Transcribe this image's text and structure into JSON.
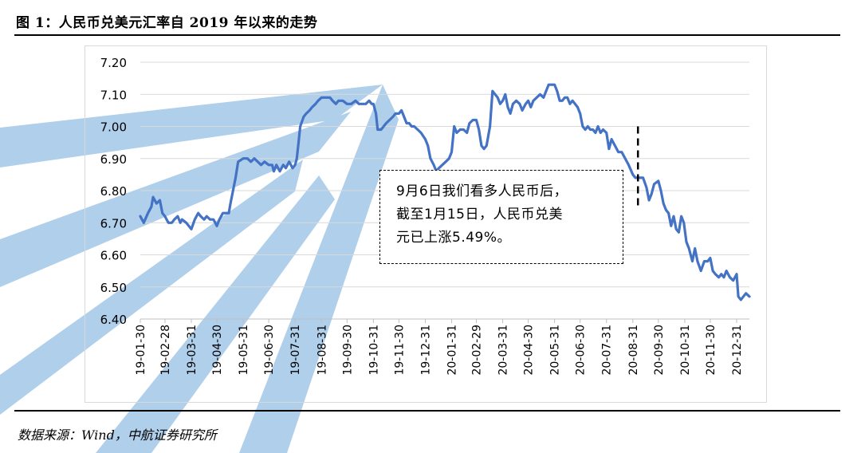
{
  "figure": {
    "title": "图 1：人民币兑美元汇率自 2019 年以来的走势",
    "source": "数据来源：Wind，中航证券研究所"
  },
  "annotation": {
    "lines": [
      "9月6日我们看多人民币后，",
      "截至1月15日，人民币兑美",
      "元已上涨5.49%。"
    ],
    "marker_date": "2020-09-06"
  },
  "colors": {
    "line": "#4472c4",
    "grid": "#d9d9d9",
    "watermark": "#6fa8dc"
  },
  "chart_data": {
    "type": "line",
    "title": "",
    "xlabel": "",
    "ylabel": "",
    "ylim": [
      6.4,
      7.2
    ],
    "yticks": [
      "7.20",
      "7.10",
      "7.00",
      "6.90",
      "6.80",
      "6.70",
      "6.60",
      "6.50",
      "6.40"
    ],
    "xticks": [
      "19-01-30",
      "19-02-28",
      "19-03-31",
      "19-04-30",
      "19-05-31",
      "19-06-30",
      "19-07-31",
      "19-08-31",
      "19-09-30",
      "19-10-31",
      "19-11-30",
      "19-12-31",
      "20-01-31",
      "20-02-29",
      "20-03-31",
      "20-04-30",
      "20-05-31",
      "20-06-30",
      "20-07-31",
      "20-08-31",
      "20-09-30",
      "20-10-31",
      "20-11-30",
      "20-12-31"
    ],
    "grid": "horizontal",
    "legend": "none",
    "series": [
      {
        "name": "",
        "points": [
          [
            "2019-01-30",
            6.72
          ],
          [
            "2019-02-03",
            6.7
          ],
          [
            "2019-02-08",
            6.73
          ],
          [
            "2019-02-12",
            6.75
          ],
          [
            "2019-02-14",
            6.78
          ],
          [
            "2019-02-18",
            6.76
          ],
          [
            "2019-02-22",
            6.77
          ],
          [
            "2019-02-25",
            6.73
          ],
          [
            "2019-02-28",
            6.72
          ],
          [
            "2019-03-04",
            6.7
          ],
          [
            "2019-03-08",
            6.7
          ],
          [
            "2019-03-11",
            6.71
          ],
          [
            "2019-03-15",
            6.72
          ],
          [
            "2019-03-18",
            6.7
          ],
          [
            "2019-03-20",
            6.71
          ],
          [
            "2019-03-25",
            6.7
          ],
          [
            "2019-03-28",
            6.69
          ],
          [
            "2019-03-31",
            6.68
          ],
          [
            "2019-04-04",
            6.71
          ],
          [
            "2019-04-08",
            6.73
          ],
          [
            "2019-04-11",
            6.72
          ],
          [
            "2019-04-15",
            6.71
          ],
          [
            "2019-04-18",
            6.72
          ],
          [
            "2019-04-22",
            6.71
          ],
          [
            "2019-04-26",
            6.71
          ],
          [
            "2019-04-30",
            6.69
          ],
          [
            "2019-05-03",
            6.71
          ],
          [
            "2019-05-07",
            6.73
          ],
          [
            "2019-05-10",
            6.73
          ],
          [
            "2019-05-14",
            6.73
          ],
          [
            "2019-05-16",
            6.76
          ],
          [
            "2019-05-19",
            6.8
          ],
          [
            "2019-05-22",
            6.84
          ],
          [
            "2019-05-25",
            6.89
          ],
          [
            "2019-05-31",
            6.9
          ],
          [
            "2019-06-05",
            6.9
          ],
          [
            "2019-06-09",
            6.89
          ],
          [
            "2019-06-13",
            6.9
          ],
          [
            "2019-06-17",
            6.89
          ],
          [
            "2019-06-21",
            6.88
          ],
          [
            "2019-06-25",
            6.89
          ],
          [
            "2019-06-30",
            6.88
          ],
          [
            "2019-07-04",
            6.88
          ],
          [
            "2019-07-06",
            6.86
          ],
          [
            "2019-07-09",
            6.88
          ],
          [
            "2019-07-13",
            6.86
          ],
          [
            "2019-07-17",
            6.88
          ],
          [
            "2019-07-20",
            6.87
          ],
          [
            "2019-07-24",
            6.89
          ],
          [
            "2019-07-28",
            6.87
          ],
          [
            "2019-07-31",
            6.88
          ],
          [
            "2019-08-02",
            6.9
          ],
          [
            "2019-08-04",
            6.95
          ],
          [
            "2019-08-06",
            7.0
          ],
          [
            "2019-08-10",
            7.03
          ],
          [
            "2019-08-13",
            7.04
          ],
          [
            "2019-08-17",
            7.05
          ],
          [
            "2019-08-20",
            7.06
          ],
          [
            "2019-08-24",
            7.07
          ],
          [
            "2019-08-27",
            7.08
          ],
          [
            "2019-08-31",
            7.09
          ],
          [
            "2019-09-06",
            7.09
          ],
          [
            "2019-09-10",
            7.09
          ],
          [
            "2019-09-13",
            7.08
          ],
          [
            "2019-09-17",
            7.07
          ],
          [
            "2019-09-20",
            7.08
          ],
          [
            "2019-09-25",
            7.08
          ],
          [
            "2019-09-30",
            7.07
          ],
          [
            "2019-10-05",
            7.07
          ],
          [
            "2019-10-10",
            7.08
          ],
          [
            "2019-10-14",
            7.07
          ],
          [
            "2019-10-18",
            7.07
          ],
          [
            "2019-10-22",
            7.07
          ],
          [
            "2019-10-26",
            7.08
          ],
          [
            "2019-10-29",
            7.07
          ],
          [
            "2019-10-31",
            7.07
          ],
          [
            "2019-11-03",
            7.04
          ],
          [
            "2019-11-05",
            6.99
          ],
          [
            "2019-11-09",
            6.99
          ],
          [
            "2019-11-12",
            7.0
          ],
          [
            "2019-11-15",
            7.01
          ],
          [
            "2019-11-19",
            7.02
          ],
          [
            "2019-11-23",
            7.03
          ],
          [
            "2019-11-26",
            7.04
          ],
          [
            "2019-11-30",
            7.04
          ],
          [
            "2019-12-03",
            7.05
          ],
          [
            "2019-12-06",
            7.03
          ],
          [
            "2019-12-09",
            7.01
          ],
          [
            "2019-12-12",
            7.01
          ],
          [
            "2019-12-15",
            7.0
          ],
          [
            "2019-12-18",
            7.0
          ],
          [
            "2019-12-22",
            6.99
          ],
          [
            "2019-12-26",
            6.98
          ],
          [
            "2019-12-31",
            6.96
          ],
          [
            "2020-01-03",
            6.94
          ],
          [
            "2020-01-06",
            6.9
          ],
          [
            "2020-01-10",
            6.88
          ],
          [
            "2020-01-13",
            6.86
          ],
          [
            "2020-01-16",
            6.87
          ],
          [
            "2020-01-20",
            6.88
          ],
          [
            "2020-01-24",
            6.89
          ],
          [
            "2020-01-28",
            6.9
          ],
          [
            "2020-01-31",
            6.92
          ],
          [
            "2020-02-03",
            7.0
          ],
          [
            "2020-02-06",
            6.98
          ],
          [
            "2020-02-10",
            6.99
          ],
          [
            "2020-02-14",
            6.99
          ],
          [
            "2020-02-18",
            6.98
          ],
          [
            "2020-02-21",
            7.01
          ],
          [
            "2020-02-25",
            7.02
          ],
          [
            "2020-02-29",
            7.02
          ],
          [
            "2020-03-03",
            6.99
          ],
          [
            "2020-03-06",
            6.94
          ],
          [
            "2020-03-09",
            6.93
          ],
          [
            "2020-03-12",
            6.94
          ],
          [
            "2020-03-16",
            7.0
          ],
          [
            "2020-03-19",
            7.11
          ],
          [
            "2020-03-22",
            7.1
          ],
          [
            "2020-03-25",
            7.09
          ],
          [
            "2020-03-28",
            7.07
          ],
          [
            "2020-03-31",
            7.08
          ],
          [
            "2020-04-03",
            7.1
          ],
          [
            "2020-04-06",
            7.06
          ],
          [
            "2020-04-09",
            7.04
          ],
          [
            "2020-04-12",
            7.07
          ],
          [
            "2020-04-16",
            7.08
          ],
          [
            "2020-04-20",
            7.07
          ],
          [
            "2020-04-23",
            7.05
          ],
          [
            "2020-04-27",
            7.07
          ],
          [
            "2020-04-30",
            7.08
          ],
          [
            "2020-05-03",
            7.06
          ],
          [
            "2020-05-06",
            7.08
          ],
          [
            "2020-05-10",
            7.09
          ],
          [
            "2020-05-14",
            7.1
          ],
          [
            "2020-05-18",
            7.09
          ],
          [
            "2020-05-21",
            7.11
          ],
          [
            "2020-05-24",
            7.13
          ],
          [
            "2020-05-27",
            7.13
          ],
          [
            "2020-05-31",
            7.13
          ],
          [
            "2020-06-03",
            7.11
          ],
          [
            "2020-06-06",
            7.08
          ],
          [
            "2020-06-09",
            7.08
          ],
          [
            "2020-06-12",
            7.09
          ],
          [
            "2020-06-15",
            7.09
          ],
          [
            "2020-06-18",
            7.07
          ],
          [
            "2020-06-21",
            7.08
          ],
          [
            "2020-06-24",
            7.07
          ],
          [
            "2020-06-27",
            7.06
          ],
          [
            "2020-06-30",
            7.04
          ],
          [
            "2020-07-03",
            7.0
          ],
          [
            "2020-07-06",
            6.99
          ],
          [
            "2020-07-09",
            7.0
          ],
          [
            "2020-07-12",
            6.99
          ],
          [
            "2020-07-15",
            6.99
          ],
          [
            "2020-07-18",
            6.98
          ],
          [
            "2020-07-21",
            7.0
          ],
          [
            "2020-07-24",
            6.98
          ],
          [
            "2020-07-27",
            6.99
          ],
          [
            "2020-07-31",
            6.98
          ],
          [
            "2020-08-03",
            6.93
          ],
          [
            "2020-08-06",
            6.96
          ],
          [
            "2020-08-10",
            6.94
          ],
          [
            "2020-08-14",
            6.92
          ],
          [
            "2020-08-18",
            6.92
          ],
          [
            "2020-08-22",
            6.9
          ],
          [
            "2020-08-26",
            6.88
          ],
          [
            "2020-08-31",
            6.85
          ],
          [
            "2020-09-03",
            6.84
          ],
          [
            "2020-09-06",
            6.84
          ],
          [
            "2020-09-09",
            6.84
          ],
          [
            "2020-09-12",
            6.84
          ],
          [
            "2020-09-16",
            6.81
          ],
          [
            "2020-09-19",
            6.77
          ],
          [
            "2020-09-22",
            6.79
          ],
          [
            "2020-09-25",
            6.82
          ],
          [
            "2020-09-30",
            6.83
          ],
          [
            "2020-10-03",
            6.8
          ],
          [
            "2020-10-06",
            6.76
          ],
          [
            "2020-10-09",
            6.74
          ],
          [
            "2020-10-12",
            6.73
          ],
          [
            "2020-10-15",
            6.69
          ],
          [
            "2020-10-18",
            6.72
          ],
          [
            "2020-10-21",
            6.68
          ],
          [
            "2020-10-24",
            6.67
          ],
          [
            "2020-10-27",
            6.72
          ],
          [
            "2020-10-30",
            6.7
          ],
          [
            "2020-11-02",
            6.64
          ],
          [
            "2020-11-05",
            6.62
          ],
          [
            "2020-11-09",
            6.58
          ],
          [
            "2020-11-12",
            6.62
          ],
          [
            "2020-11-15",
            6.58
          ],
          [
            "2020-11-19",
            6.55
          ],
          [
            "2020-11-23",
            6.58
          ],
          [
            "2020-11-27",
            6.58
          ],
          [
            "2020-11-30",
            6.59
          ],
          [
            "2020-12-03",
            6.55
          ],
          [
            "2020-12-06",
            6.54
          ],
          [
            "2020-12-10",
            6.53
          ],
          [
            "2020-12-13",
            6.54
          ],
          [
            "2020-12-16",
            6.53
          ],
          [
            "2020-12-19",
            6.55
          ],
          [
            "2020-12-23",
            6.53
          ],
          [
            "2020-12-27",
            6.52
          ],
          [
            "2020-12-31",
            6.54
          ],
          [
            "2021-01-02",
            6.47
          ],
          [
            "2021-01-05",
            6.46
          ],
          [
            "2021-01-08",
            6.47
          ],
          [
            "2021-01-11",
            6.48
          ],
          [
            "2021-01-15",
            6.47
          ]
        ]
      }
    ]
  }
}
